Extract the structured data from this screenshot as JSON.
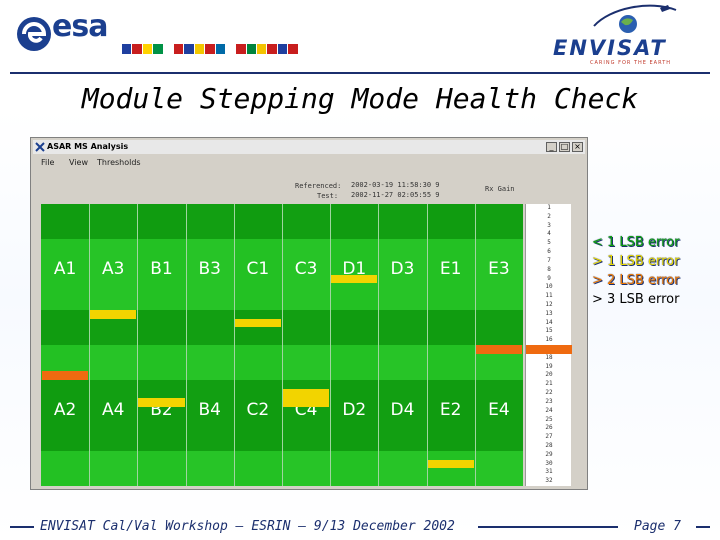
{
  "header": {
    "esa_logo_text": "esa",
    "envisat_logo_text": "ENVISAT",
    "envisat_tagline": "CARING FOR THE EARTH",
    "flag_colors": [
      "#1f3f9f",
      "#c81e1e",
      "#ffd200",
      "#009246",
      "#ffffff",
      "#c81e1e",
      "#1f3f9f",
      "#f3c800",
      "#c81e1e",
      "#006aa7",
      "#ffffff",
      "#c81e1e",
      "#00843d",
      "#f4c300",
      "#c81e1e",
      "#1f3f9f",
      "#c81e1e",
      "#ffffff"
    ]
  },
  "slide": {
    "title": "Module Stepping Mode Health Check"
  },
  "app_window": {
    "title": "ASAR MS Analysis",
    "menu": [
      "File",
      "View",
      "Thresholds"
    ],
    "referenced_label": "Referenced:",
    "referenced_value": "2002-03-19 11:58:30 9",
    "test_label": "Test:",
    "test_value": "2002-11-27 02:05:55 9",
    "rx_label": "Rx Gain",
    "buttons": {
      "minimize": "_",
      "maximize": "□",
      "close": "×"
    }
  },
  "modules": {
    "top_row": [
      "A1",
      "A3",
      "B1",
      "B3",
      "C1",
      "C3",
      "D1",
      "D3",
      "E1",
      "E3"
    ],
    "bottom_row": [
      "A2",
      "A4",
      "B2",
      "B4",
      "C2",
      "C4",
      "D2",
      "D4",
      "E2",
      "E4"
    ],
    "errors": [
      {
        "column": 1,
        "row": 12,
        "level": "gt1"
      },
      {
        "column": 4,
        "row": 13,
        "level": "gt1"
      },
      {
        "column": 6,
        "row": 8,
        "level": "gt1"
      },
      {
        "column": 0,
        "row": 19,
        "level": "gt2"
      },
      {
        "column": 2,
        "row": 22,
        "level": "gt1"
      },
      {
        "column": 5,
        "row": 21,
        "level": "gt1"
      },
      {
        "column": 5,
        "row": 22,
        "level": "gt1"
      },
      {
        "column": 8,
        "row": 29,
        "level": "gt1"
      },
      {
        "column": 9,
        "row": 16,
        "level": "gt2"
      }
    ]
  },
  "row_indices": [
    "1",
    "2",
    "3",
    "4",
    "5",
    "6",
    "7",
    "8",
    "9",
    "10",
    "11",
    "12",
    "13",
    "14",
    "15",
    "16",
    "17",
    "18",
    "19",
    "20",
    "21",
    "22",
    "23",
    "24",
    "25",
    "26",
    "27",
    "28",
    "29",
    "30",
    "31",
    "32"
  ],
  "legend": {
    "items": [
      {
        "text": "< 1 LSB error",
        "color": "#0ea00e"
      },
      {
        "text": "> 1 LSB error",
        "color": "#e8d800"
      },
      {
        "text": "> 2 LSB error",
        "color": "#f07a00"
      },
      {
        "text": "> 3 LSB error",
        "color": "#000000"
      }
    ]
  },
  "colors": {
    "band_dark": "#109c10",
    "band_light": "#23c123",
    "gt1": "#f2d400",
    "gt2": "#ef6a10",
    "accent_navy": "#1b2f6e"
  },
  "footer": {
    "text": "ENVISAT Cal/Val Workshop – ESRIN – 9/13 December 2002",
    "page": "Page 7"
  }
}
